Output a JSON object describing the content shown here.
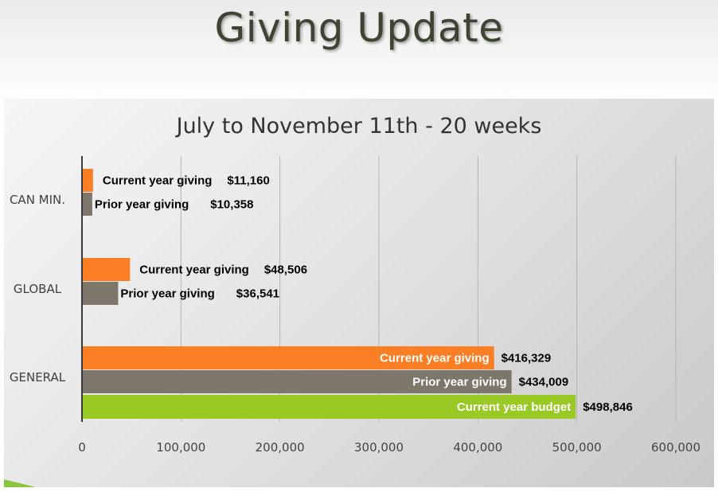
{
  "slide": {
    "title": "Giving Update"
  },
  "colors": {
    "current": "#fb7d24",
    "prior": "#7d776b",
    "budget": "#99c925",
    "label_dark": "#000000",
    "label_light": "#ffffff"
  },
  "chart_data": {
    "type": "bar",
    "orientation": "horizontal",
    "title": "July to November 11th - 20 weeks",
    "xlim": [
      0,
      600000
    ],
    "x_ticks": [
      0,
      100000,
      200000,
      300000,
      400000,
      500000,
      600000
    ],
    "x_tick_labels": [
      "0",
      "100,000",
      "200,000",
      "300,000",
      "400,000",
      "500,000",
      "600,000"
    ],
    "grid": true,
    "legend": "none",
    "categories": [
      {
        "name": "CAN MIN.",
        "bars": [
          {
            "series": "current",
            "value": 11160,
            "label_name": "Current year giving",
            "label_value": "$11,160"
          },
          {
            "series": "prior",
            "value": 10358,
            "label_name": "Prior year giving",
            "label_value": "$10,358"
          }
        ]
      },
      {
        "name": "GLOBAL",
        "bars": [
          {
            "series": "current",
            "value": 48506,
            "label_name": "Current year giving",
            "label_value": "$48,506"
          },
          {
            "series": "prior",
            "value": 36541,
            "label_name": "Prior year giving",
            "label_value": "$36,541"
          }
        ]
      },
      {
        "name": "GENERAL",
        "bars": [
          {
            "series": "current",
            "value": 416329,
            "label_name": "Current year giving",
            "label_value": "$416,329"
          },
          {
            "series": "prior",
            "value": 434009,
            "label_name": "Prior year giving",
            "label_value": "$434,009"
          },
          {
            "series": "budget",
            "value": 498846,
            "label_name": "Current year budget",
            "label_value": "$498,846"
          }
        ]
      }
    ]
  }
}
